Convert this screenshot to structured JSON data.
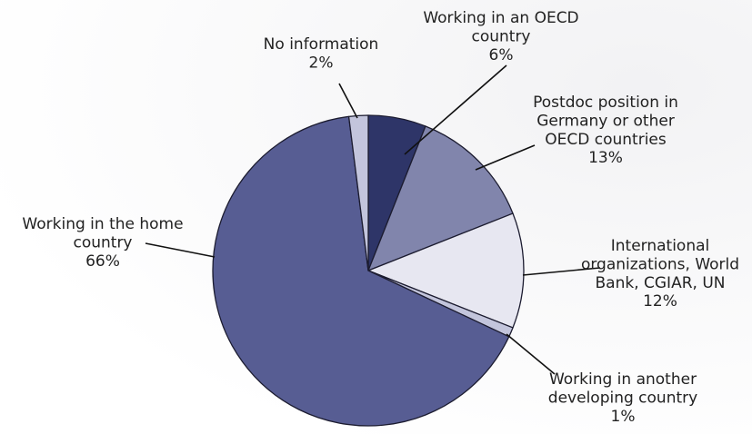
{
  "chart_data": {
    "type": "pie",
    "start_angle_deg": 0,
    "direction": "clockwise",
    "slices": [
      {
        "label": [
          "Working in an OECD",
          "country"
        ],
        "value_label": "6%",
        "value": 6,
        "color": "#2e3568"
      },
      {
        "label": [
          "Postdoc position in",
          "Germany or other",
          "OECD countries"
        ],
        "value_label": "13%",
        "value": 13,
        "color": "#8185ac"
      },
      {
        "label": [
          "International",
          "organizations, World",
          "Bank, CGIAR, UN"
        ],
        "value_label": "12%",
        "value": 12,
        "color": "#e7e7f1"
      },
      {
        "label": [
          "Working in another",
          "developing country"
        ],
        "value_label": "1%",
        "value": 1,
        "color": "#c3c5dc"
      },
      {
        "label": [
          "Working in the home",
          "country"
        ],
        "value_label": "66%",
        "value": 66,
        "color": "#575d93"
      },
      {
        "label": [
          "No information"
        ],
        "value_label": "2%",
        "value": 2,
        "color": "#c3c5dc"
      }
    ]
  }
}
